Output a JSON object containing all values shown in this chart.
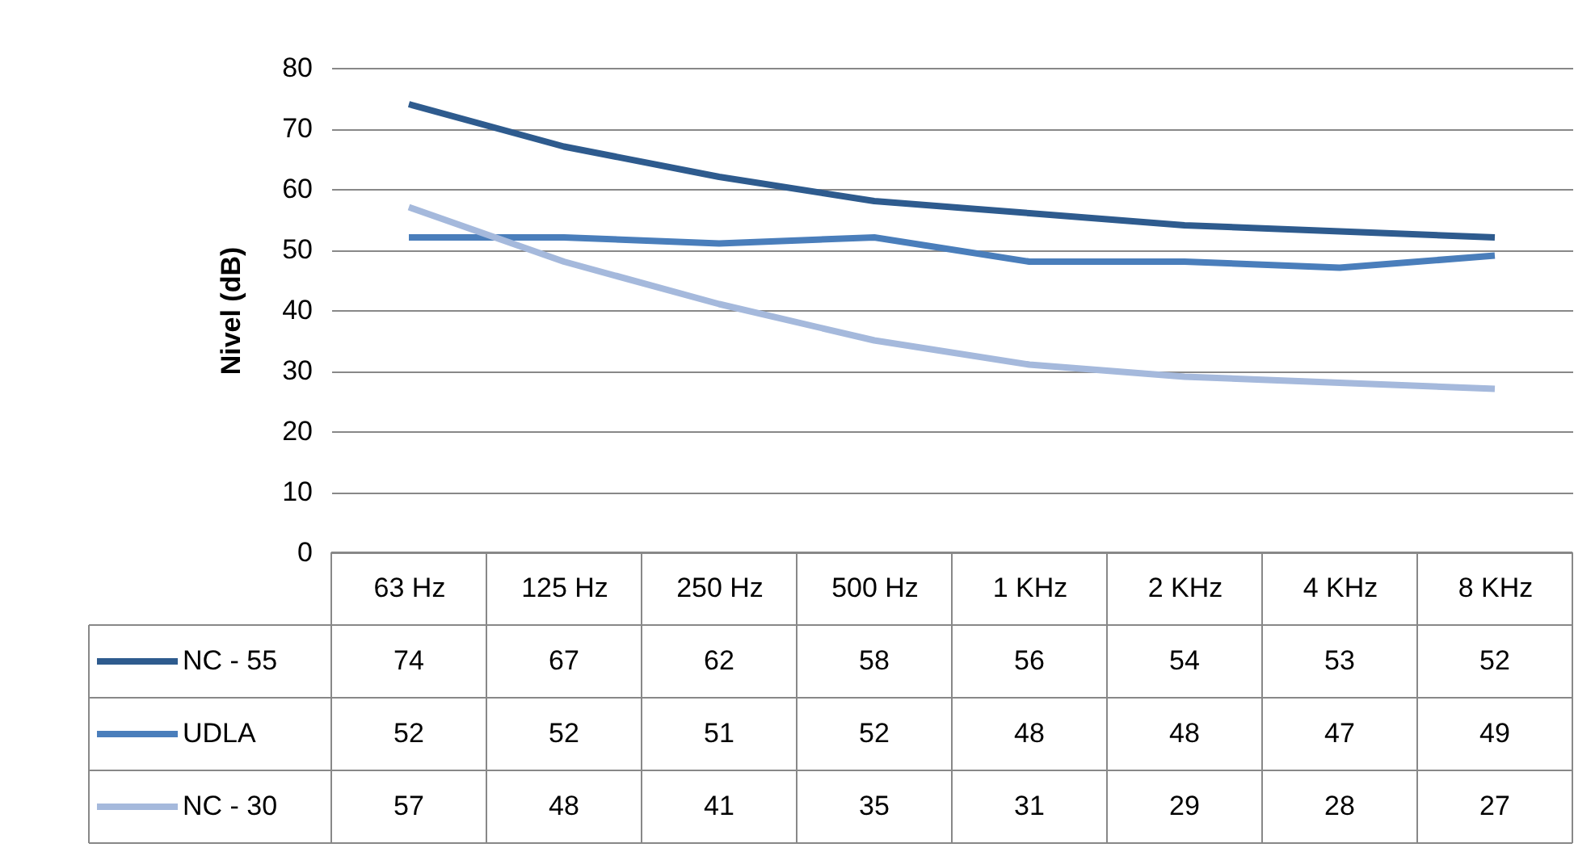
{
  "chart_data": {
    "type": "line",
    "ylabel": "Nivel (dB)",
    "categories": [
      "63 Hz",
      "125 Hz",
      "250 Hz",
      "500 Hz",
      "1 KHz",
      "2 KHz",
      "4 KHz",
      "8 KHz"
    ],
    "series": [
      {
        "name": "NC - 55",
        "color": "#2e5b8e",
        "values": [
          74,
          67,
          62,
          58,
          56,
          54,
          53,
          52
        ]
      },
      {
        "name": "UDLA",
        "color": "#4a7ebb",
        "values": [
          52,
          52,
          51,
          52,
          48,
          48,
          47,
          49
        ]
      },
      {
        "name": "NC - 30",
        "color": "#a5b9dc",
        "values": [
          57,
          48,
          41,
          35,
          31,
          29,
          28,
          27
        ]
      }
    ],
    "ylim": [
      0,
      80
    ],
    "yticks": [
      0,
      10,
      20,
      30,
      40,
      50,
      60,
      70,
      80
    ],
    "grid": "y",
    "legend": "bottom",
    "data_labels": true,
    "line_style": "solid",
    "marker": "none"
  }
}
